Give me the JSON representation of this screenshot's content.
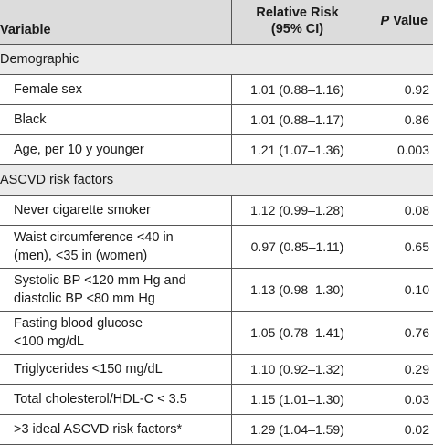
{
  "headers": {
    "variable": "Variable",
    "rr_line1": "Relative Risk",
    "rr_line2": "(95% CI)",
    "p_italic": "P",
    "p_rest": " Value"
  },
  "sections": [
    {
      "title": "Demographic",
      "rows": [
        {
          "label": [
            "Female sex"
          ],
          "rr": "1.01 (0.88–1.16)",
          "p": "0.92"
        },
        {
          "label": [
            "Black"
          ],
          "rr": "1.01 (0.88–1.17)",
          "p": "0.86"
        },
        {
          "label": [
            "Age, per 10 y younger"
          ],
          "rr": "1.21 (1.07–1.36)",
          "p": "0.003"
        }
      ]
    },
    {
      "title": "ASCVD risk factors",
      "rows": [
        {
          "label": [
            "Never cigarette smoker"
          ],
          "rr": "1.12 (0.99–1.28)",
          "p": "0.08"
        },
        {
          "label": [
            "Waist circumference <40 in",
            "(men), <35 in (women)"
          ],
          "rr": "0.97 (0.85–1.11)",
          "p": "0.65"
        },
        {
          "label": [
            "Systolic BP <120 mm Hg and",
            "diastolic BP <80 mm Hg"
          ],
          "rr": "1.13 (0.98–1.30)",
          "p": "0.10"
        },
        {
          "label": [
            "Fasting blood glucose",
            "<100 mg/dL"
          ],
          "rr": "1.05 (0.78–1.41)",
          "p": "0.76"
        },
        {
          "label": [
            "Triglycerides <150 mg/dL"
          ],
          "rr": "1.10 (0.92–1.32)",
          "p": "0.29"
        },
        {
          "label": [
            "Total cholesterol/HDL-C < 3.5"
          ],
          "rr": "1.15 (1.01–1.30)",
          "p": "0.03"
        },
        {
          "label": [
            ">3 ideal ASCVD risk factors*"
          ],
          "rr": "1.29 (1.04–1.59)",
          "p": "0.02"
        }
      ]
    }
  ]
}
